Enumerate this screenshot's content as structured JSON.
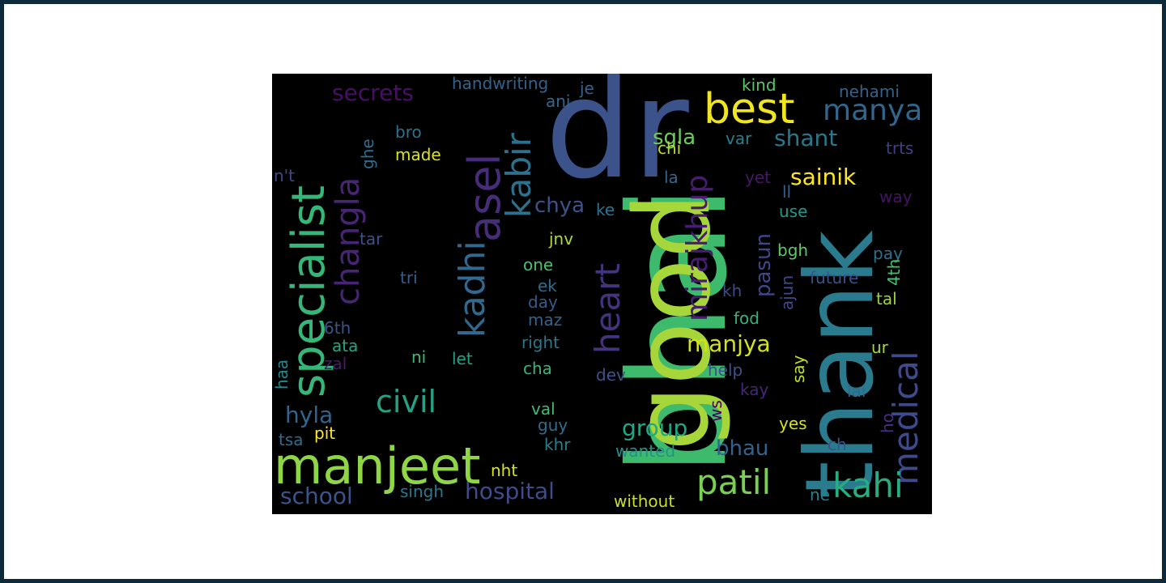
{
  "colors": {
    "page_border": "#0d2a3b",
    "page_background": "#ffffff",
    "cloud_background": "#000000"
  },
  "words": [
    {
      "text": "bhai",
      "color": "#3dba6c"
    },
    {
      "text": "dr",
      "color": "#3b528b"
    },
    {
      "text": "good",
      "color": "#a7d63a"
    },
    {
      "text": "thank",
      "color": "#2a7b8e"
    },
    {
      "text": "manjeet",
      "color": "#8ed645"
    },
    {
      "text": "specialist",
      "color": "#35b779"
    },
    {
      "text": "best",
      "color": "#f0e51f"
    },
    {
      "text": "asel",
      "color": "#472c7a"
    },
    {
      "text": "kadhi",
      "color": "#31688e"
    },
    {
      "text": "changla",
      "color": "#482475"
    },
    {
      "text": "kabir",
      "color": "#2c728e"
    },
    {
      "text": "medical",
      "color": "#3e4a89"
    },
    {
      "text": "mirajkhup",
      "color": "#481d6f"
    },
    {
      "text": "heart",
      "color": "#46337e"
    },
    {
      "text": "patil",
      "color": "#7ad151"
    },
    {
      "text": "kahi",
      "color": "#26ad81"
    },
    {
      "text": "civil",
      "color": "#25a184"
    },
    {
      "text": "manya",
      "color": "#31668e"
    },
    {
      "text": "hospital",
      "color": "#3e4c8a"
    },
    {
      "text": "school",
      "color": "#3a548c"
    },
    {
      "text": "shant",
      "color": "#2a788e"
    },
    {
      "text": "sainik",
      "color": "#fde725"
    },
    {
      "text": "manjya",
      "color": "#d2e21b"
    },
    {
      "text": "group",
      "color": "#22a785"
    },
    {
      "text": "bhau",
      "color": "#33638d"
    },
    {
      "text": "hyla",
      "color": "#32648e"
    },
    {
      "text": "chya",
      "color": "#3b528b"
    },
    {
      "text": "secrets",
      "color": "#471063"
    },
    {
      "text": "sgla",
      "color": "#6ccd5a"
    },
    {
      "text": "pasun",
      "color": "#3f4788"
    },
    {
      "text": "handwriting",
      "color": "#33638d"
    },
    {
      "text": "nehami",
      "color": "#33638d"
    },
    {
      "text": "kind",
      "color": "#58c765"
    },
    {
      "text": "je",
      "color": "#34618d"
    },
    {
      "text": "ani",
      "color": "#31688e"
    },
    {
      "text": "bro",
      "color": "#2d718e"
    },
    {
      "text": "made",
      "color": "#dde318"
    },
    {
      "text": "ghe",
      "color": "#2e6e8e"
    },
    {
      "text": "n't",
      "color": "#3e4989"
    },
    {
      "text": "chi",
      "color": "#b5de2b"
    },
    {
      "text": "var",
      "color": "#26818e"
    },
    {
      "text": "trts",
      "color": "#433e85"
    },
    {
      "text": "la",
      "color": "#31688e"
    },
    {
      "text": "yet",
      "color": "#481769"
    },
    {
      "text": "ll",
      "color": "#33628d"
    },
    {
      "text": "way",
      "color": "#471365"
    },
    {
      "text": "ke",
      "color": "#2b758e"
    },
    {
      "text": "use",
      "color": "#1f9a8a"
    },
    {
      "text": "jnv",
      "color": "#addc30"
    },
    {
      "text": "tar",
      "color": "#3b528b"
    },
    {
      "text": "bgh",
      "color": "#5ec962"
    },
    {
      "text": "pay",
      "color": "#2d708e"
    },
    {
      "text": "one",
      "color": "#4ac16d"
    },
    {
      "text": "tri",
      "color": "#355f8d"
    },
    {
      "text": "ajun",
      "color": "#3e4a89"
    },
    {
      "text": "future",
      "color": "#3b528b"
    },
    {
      "text": "4th",
      "color": "#4ac16d"
    },
    {
      "text": "ek",
      "color": "#2e6d8e"
    },
    {
      "text": "kh",
      "color": "#3e4a89"
    },
    {
      "text": "tal",
      "color": "#98d83e"
    },
    {
      "text": "day",
      "color": "#375a8c"
    },
    {
      "text": "maz",
      "color": "#33638d"
    },
    {
      "text": "fod",
      "color": "#31b57b"
    },
    {
      "text": "6th",
      "color": "#3a548c"
    },
    {
      "text": "right",
      "color": "#2a768e"
    },
    {
      "text": "ata",
      "color": "#22a884"
    },
    {
      "text": "ni",
      "color": "#3bbb75"
    },
    {
      "text": "let",
      "color": "#20a386"
    },
    {
      "text": "ur",
      "color": "#a2da37"
    },
    {
      "text": "zal",
      "color": "#481a6c"
    },
    {
      "text": "say",
      "color": "#c2df23"
    },
    {
      "text": "cha",
      "color": "#35b779"
    },
    {
      "text": "dev",
      "color": "#3a548c"
    },
    {
      "text": "help",
      "color": "#3b528b"
    },
    {
      "text": "haa",
      "color": "#23888e"
    },
    {
      "text": "kay",
      "color": "#482677"
    },
    {
      "text": "lai",
      "color": "#31688e"
    },
    {
      "text": "ws",
      "color": "#440154"
    },
    {
      "text": "ho",
      "color": "#472f7d"
    },
    {
      "text": "val",
      "color": "#3dbc74"
    },
    {
      "text": "yes",
      "color": "#d5e21a"
    },
    {
      "text": "guy",
      "color": "#2f6c8e"
    },
    {
      "text": "tsa",
      "color": "#2f6c8e"
    },
    {
      "text": "pit",
      "color": "#fde725"
    },
    {
      "text": "khr",
      "color": "#27808e"
    },
    {
      "text": "ch",
      "color": "#3b528b"
    },
    {
      "text": "wanted",
      "color": "#21918c"
    },
    {
      "text": "nht",
      "color": "#d8e219"
    },
    {
      "text": "singh",
      "color": "#2a788e"
    },
    {
      "text": "without",
      "color": "#c8e020"
    },
    {
      "text": "ne",
      "color": "#26828e"
    }
  ]
}
